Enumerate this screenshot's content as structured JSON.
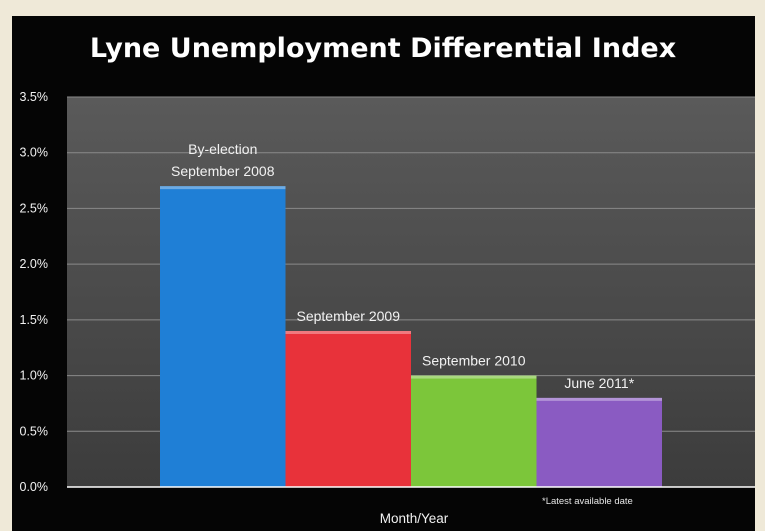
{
  "chart_data": {
    "type": "bar",
    "title": "Lyne Unemployment Differential Index",
    "xlabel": "Month/Year",
    "ylabel": "",
    "ylim": [
      0,
      3.5
    ],
    "yticks": [
      "0.0%",
      "0.5%",
      "1.0%",
      "1.5%",
      "2.0%",
      "2.5%",
      "3.0%",
      "3.5%"
    ],
    "grid": true,
    "categories": [
      [
        "By-election",
        "September 2008"
      ],
      [
        "September 2009"
      ],
      [
        "September 2010"
      ],
      [
        "June 2011*"
      ]
    ],
    "values": [
      2.7,
      1.4,
      1.0,
      0.8
    ],
    "colors": [
      "#1f7fd6",
      "#e8323a",
      "#7cc63a",
      "#8a5bc2"
    ],
    "footnote": "*Latest available date"
  },
  "style": {
    "plot_background": "#4b4b4b",
    "grid_color": "#8a8a8a",
    "axis_color": "#ffffff"
  }
}
